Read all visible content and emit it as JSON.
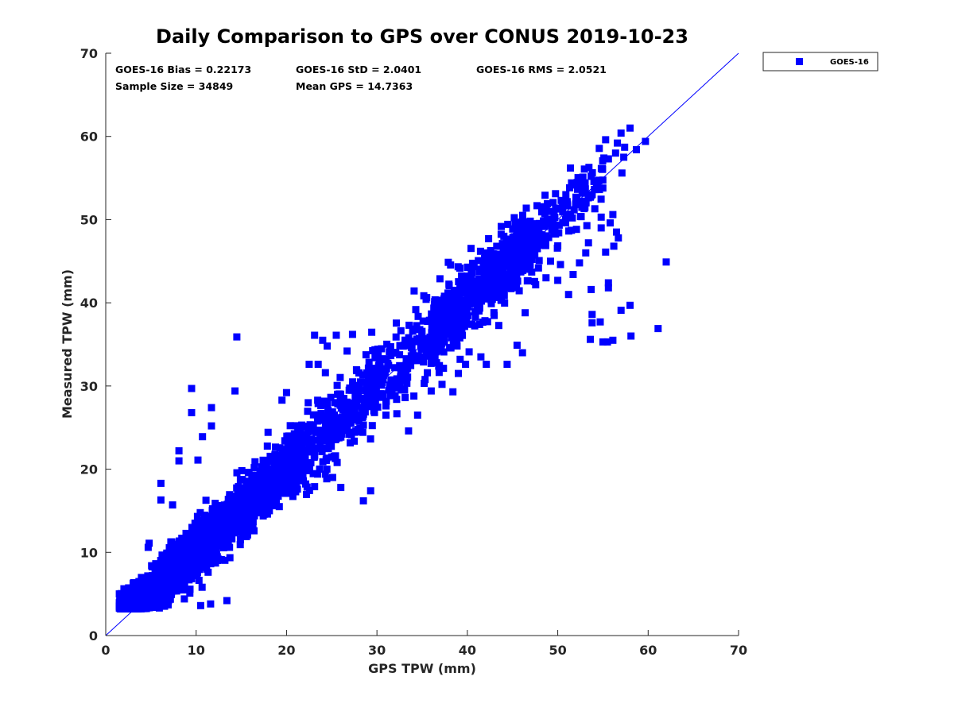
{
  "colors": {
    "marker": "#0000ff",
    "line": "#0000ff",
    "axis": "#262626",
    "text": "#262626"
  },
  "chart_data": {
    "type": "scatter",
    "title": "Daily Comparison to GPS over CONUS 2019-10-23",
    "xlabel": "GPS TPW (mm)",
    "ylabel": "Measured TPW (mm)",
    "xlim": [
      0,
      70
    ],
    "ylim": [
      0,
      70
    ],
    "xticks": [
      "0",
      "10",
      "20",
      "30",
      "40",
      "50",
      "60",
      "70"
    ],
    "yticks": [
      "0",
      "10",
      "20",
      "30",
      "40",
      "50",
      "60",
      "70"
    ],
    "grid": false,
    "legend": {
      "position": "outside-top-right",
      "entries": [
        "GOES-16"
      ]
    },
    "reference_line": {
      "name": "1:1 line",
      "x": [
        0,
        70
      ],
      "y": [
        0,
        70
      ]
    },
    "annotations": [
      "GOES-16 Bias = 0.22173",
      "GOES-16 StD = 2.0401",
      "GOES-16 RMS = 2.0521",
      "Sample Size = 34849",
      "Mean GPS = 14.7363"
    ],
    "series": [
      {
        "name": "GOES-16",
        "marker": "square",
        "generated_clusters": [
          {
            "xmin": 1.5,
            "xmax": 12,
            "sd": 1.3,
            "n": 1700
          },
          {
            "xmin": 10,
            "xmax": 22,
            "sd": 1.6,
            "n": 1000
          },
          {
            "xmin": 20,
            "xmax": 30,
            "sd": 2.2,
            "n": 350
          },
          {
            "xmin": 30,
            "xmax": 38,
            "sd": 2.3,
            "n": 180
          },
          {
            "xmin": 36,
            "xmax": 48,
            "sd": 2.0,
            "n": 600
          },
          {
            "xmin": 46,
            "xmax": 55,
            "sd": 1.8,
            "n": 150
          }
        ],
        "points": [
          [
            62.0,
            44.9
          ],
          [
            61.1,
            36.9
          ],
          [
            58.0,
            39.7
          ],
          [
            57.0,
            39.1
          ],
          [
            58.1,
            36.0
          ],
          [
            56.1,
            35.5
          ],
          [
            55.5,
            35.3
          ],
          [
            55.0,
            35.3
          ],
          [
            54.7,
            37.7
          ],
          [
            53.8,
            37.6
          ],
          [
            53.6,
            35.6
          ],
          [
            53.8,
            38.6
          ],
          [
            55.6,
            41.8
          ],
          [
            55.6,
            42.4
          ],
          [
            53.7,
            41.6
          ],
          [
            51.2,
            41.0
          ],
          [
            50.0,
            42.7
          ],
          [
            49.2,
            45.0
          ],
          [
            48.7,
            43.0
          ],
          [
            46.4,
            38.8
          ],
          [
            59.7,
            59.4
          ],
          [
            58.7,
            58.4
          ],
          [
            58.0,
            61.0
          ],
          [
            57.0,
            60.4
          ],
          [
            57.3,
            57.5
          ],
          [
            56.4,
            58.0
          ],
          [
            57.4,
            58.7
          ],
          [
            56.6,
            59.2
          ],
          [
            55.3,
            59.6
          ],
          [
            55.6,
            57.3
          ],
          [
            57.1,
            55.6
          ],
          [
            55.1,
            57.4
          ],
          [
            53.7,
            55.2
          ],
          [
            52.8,
            53.9
          ],
          [
            51.4,
            56.2
          ],
          [
            52.8,
            51.9
          ],
          [
            54.1,
            51.3
          ],
          [
            56.1,
            50.6
          ],
          [
            54.8,
            50.3
          ],
          [
            55.8,
            49.6
          ],
          [
            54.8,
            49.0
          ],
          [
            56.5,
            48.5
          ],
          [
            56.7,
            47.8
          ],
          [
            56.2,
            46.8
          ],
          [
            55.3,
            46.1
          ],
          [
            53.4,
            47.2
          ],
          [
            53.1,
            46.0
          ],
          [
            52.4,
            44.8
          ],
          [
            51.7,
            43.4
          ],
          [
            50.3,
            44.6
          ],
          [
            14.5,
            35.9
          ],
          [
            14.3,
            29.4
          ],
          [
            9.5,
            29.7
          ],
          [
            9.5,
            26.8
          ],
          [
            11.7,
            27.4
          ],
          [
            11.7,
            25.2
          ],
          [
            10.7,
            23.9
          ],
          [
            8.1,
            22.2
          ],
          [
            8.1,
            21.0
          ],
          [
            10.2,
            21.1
          ],
          [
            6.1,
            18.3
          ],
          [
            6.1,
            16.3
          ],
          [
            7.4,
            15.7
          ],
          [
            4.8,
            11.1
          ],
          [
            4.7,
            10.6
          ],
          [
            23.1,
            36.1
          ],
          [
            24.0,
            35.5
          ],
          [
            24.5,
            34.8
          ],
          [
            25.5,
            36.1
          ],
          [
            27.3,
            36.2
          ],
          [
            22.5,
            32.6
          ],
          [
            23.5,
            32.6
          ],
          [
            24.3,
            31.6
          ],
          [
            26.7,
            34.2
          ],
          [
            19.5,
            28.3
          ],
          [
            20.0,
            29.2
          ],
          [
            26.5,
            26.8
          ],
          [
            27.0,
            25.6
          ],
          [
            28.5,
            25.3
          ],
          [
            26.9,
            24.2
          ],
          [
            25.6,
            20.8
          ],
          [
            24.3,
            19.4
          ],
          [
            25.1,
            19.0
          ],
          [
            23.1,
            17.9
          ],
          [
            21.2,
            17.6
          ],
          [
            19.2,
            15.5
          ],
          [
            18.1,
            15.0
          ],
          [
            17.9,
            14.6
          ],
          [
            16.4,
            12.6
          ],
          [
            15.7,
            12.1
          ],
          [
            26.0,
            17.8
          ],
          [
            29.3,
            17.4
          ],
          [
            28.5,
            16.2
          ],
          [
            34.5,
            26.5
          ],
          [
            33.5,
            24.6
          ],
          [
            31.0,
            26.5
          ],
          [
            31.0,
            27.6
          ],
          [
            33.0,
            29.6
          ],
          [
            36.0,
            29.4
          ],
          [
            37.2,
            30.2
          ],
          [
            38.4,
            29.3
          ],
          [
            39.0,
            31.5
          ],
          [
            39.2,
            33.2
          ],
          [
            39.8,
            32.6
          ],
          [
            40.2,
            34.1
          ],
          [
            41.5,
            33.5
          ],
          [
            42.1,
            32.6
          ],
          [
            44.4,
            32.6
          ],
          [
            46.1,
            34.0
          ],
          [
            45.5,
            34.9
          ],
          [
            13.4,
            4.2
          ],
          [
            11.6,
            3.8
          ],
          [
            10.5,
            3.6
          ],
          [
            9.3,
            5.1
          ],
          [
            8.7,
            4.4
          ],
          [
            2.0,
            3.5
          ],
          [
            1.6,
            4.1
          ],
          [
            1.5,
            5.0
          ],
          [
            2.2,
            5.2
          ],
          [
            2.9,
            4.9
          ],
          [
            3.2,
            3.2
          ],
          [
            3.5,
            3.4
          ],
          [
            4.3,
            3.6
          ],
          [
            5.6,
            3.6
          ],
          [
            6.9,
            3.7
          ]
        ]
      }
    ]
  }
}
